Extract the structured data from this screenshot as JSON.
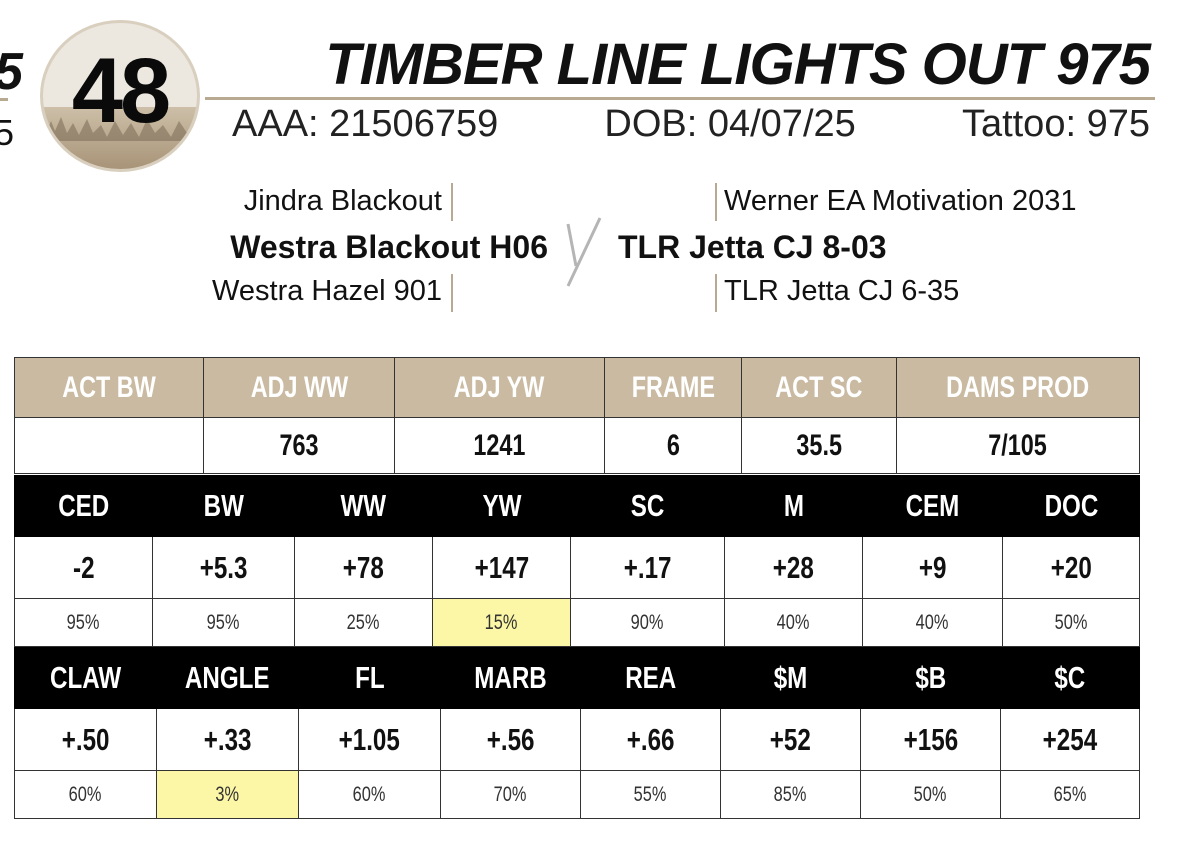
{
  "edge_fragments": {
    "top": "5",
    "bottom": "5"
  },
  "lot": {
    "number": "48"
  },
  "animal": {
    "name": "TIMBER LINE LIGHTS OUT 975",
    "aaa": "AAA: 21506759",
    "dob": "DOB: 04/07/25",
    "tattoo": "Tattoo: 975"
  },
  "pedigree": {
    "sire_sire": "Jindra Blackout",
    "sire": "Westra Blackout H06",
    "sire_dam": "Westra Hazel 901",
    "dam_sire": "Werner EA Motivation 2031",
    "dam": "TLR Jetta CJ 8-03",
    "dam_dam": "TLR Jetta CJ 6-35"
  },
  "performance": {
    "headers": [
      "ACT BW",
      "ADJ WW",
      "ADJ YW",
      "FRAME",
      "ACT SC",
      "DAMS PROD"
    ],
    "values": [
      "",
      "763",
      "1241",
      "6",
      "35.5",
      "7/105"
    ]
  },
  "epd_table_1": {
    "headers": [
      "CED",
      "BW",
      "WW",
      "YW",
      "SC",
      "M",
      "CEM",
      "DOC"
    ],
    "values": [
      "-2",
      "+5.3",
      "+78",
      "+147",
      "+.17",
      "+28",
      "+9",
      "+20"
    ],
    "percentiles": [
      "95%",
      "95%",
      "25%",
      "15%",
      "90%",
      "40%",
      "40%",
      "50%"
    ],
    "highlight_color": "#fcf7a6"
  },
  "epd_table_2": {
    "headers": [
      "CLAW",
      "ANGLE",
      "FL",
      "MARB",
      "REA",
      "$M",
      "$B",
      "$C"
    ],
    "values": [
      "+.50",
      "+.33",
      "+1.05",
      "+.56",
      "+.66",
      "+52",
      "+156",
      "+254"
    ],
    "percentiles": [
      "60%",
      "3%",
      "60%",
      "70%",
      "55%",
      "85%",
      "50%",
      "65%"
    ],
    "highlight_color": "#fcf7a6"
  },
  "colors": {
    "accent_tan": "#c9baa1",
    "rule_tan": "#b8aa92",
    "header_black": "#000000"
  }
}
